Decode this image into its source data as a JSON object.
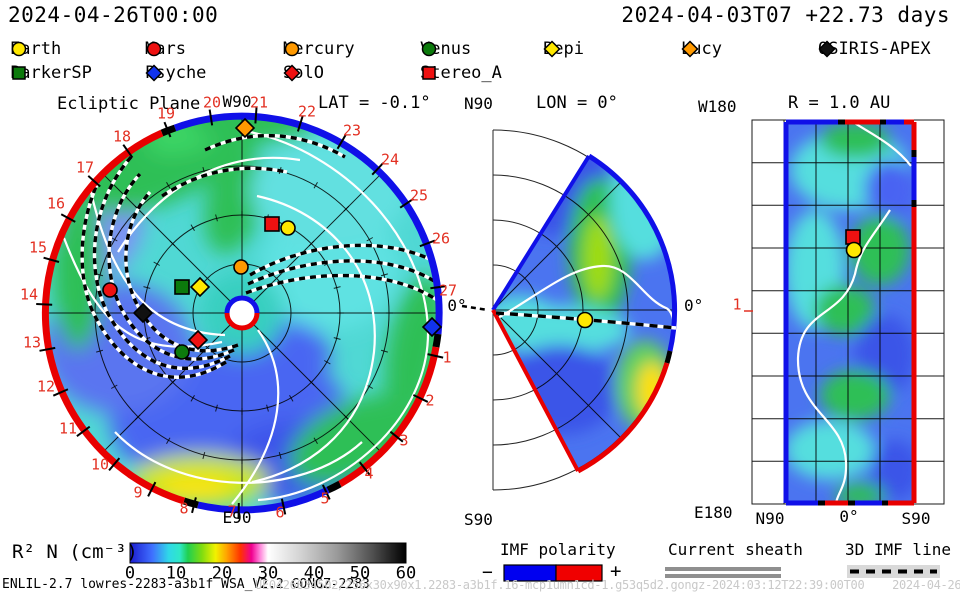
{
  "header": {
    "left_time": "2024-04-26T00:00",
    "right_time": "2024-04-03T07 +22.73 days"
  },
  "legend": {
    "row1": [
      {
        "label": "Earth",
        "shape": "circle",
        "color": "#ffe800"
      },
      {
        "label": "Mars",
        "shape": "circle",
        "color": "#ee1111"
      },
      {
        "label": "Mercury",
        "shape": "circle",
        "color": "#ff9900"
      },
      {
        "label": "Venus",
        "shape": "circle",
        "color": "#0c7a0c"
      },
      {
        "label": "Bepi",
        "shape": "diamond",
        "color": "#ffe800"
      },
      {
        "label": "Lucy",
        "shape": "diamond",
        "color": "#ff9900"
      },
      {
        "label": "OSIRIS-APEX",
        "shape": "diamond",
        "color": "#111111"
      }
    ],
    "row2": [
      {
        "label": "ParkerSP",
        "shape": "square",
        "color": "#0c7a0c"
      },
      {
        "label": "Psyche",
        "shape": "diamond",
        "color": "#1133ee"
      },
      {
        "label": "SolO",
        "shape": "diamond",
        "color": "#ee1111"
      },
      {
        "label": "Stereo_A",
        "shape": "square",
        "color": "#ee1111"
      }
    ]
  },
  "plots": {
    "ecliptic": {
      "title": "Ecliptic Plane",
      "lat_label": "LAT = -0.1°",
      "w90": "W90",
      "e90": "E90",
      "zero": "0°",
      "days": [
        "1",
        "2",
        "3",
        "4",
        "5",
        "6",
        "7",
        "8",
        "9",
        "10",
        "11",
        "12",
        "13",
        "14",
        "15",
        "16",
        "17",
        "18",
        "19",
        "20",
        "21",
        "22",
        "23",
        "24",
        "25",
        "26",
        "27"
      ]
    },
    "meridional": {
      "title": "LON = 0°",
      "n90": "N90",
      "s90": "S90",
      "zero": "0°"
    },
    "radial_map": {
      "title": "R = 1.0 AU",
      "w180": "W180",
      "e180": "E180",
      "xticks": [
        "N90",
        "0°",
        "S90"
      ],
      "r_tick": "1"
    }
  },
  "colorbar": {
    "label": "R² N (cm⁻³)",
    "ticks": [
      "0",
      "10",
      "20",
      "30",
      "40",
      "50",
      "60"
    ]
  },
  "bottom_legend": {
    "imf_title": "IMF polarity",
    "minus": "−",
    "plus": "+",
    "imf_neg_color": "#0000f0",
    "imf_pos_color": "#f00000",
    "sheath_title": "Current sheath",
    "imf3d_title": "3D IMF line"
  },
  "footer": {
    "model_info": "ENLIL-2.7 lowres-2283-a3b1f WSA_V2.2 GONGZ-2283",
    "watermark": "UE0426034502/256x30x90x1.2283-a3b1f.16-mcp1umn1cd-1.g53q5d2.gongz-2024:03:12T22:39:00T00    2024-04-26"
  },
  "chart_data": [
    {
      "type": "heatmap",
      "title": "Ecliptic Plane",
      "quantity": "R² N (cm⁻³)",
      "projection": "polar, ecliptic plane slice at LAT = -0.1°",
      "colorbar_range": [
        0,
        60
      ],
      "colorbar_ticks": [
        0,
        10,
        20,
        30,
        40,
        50,
        60
      ],
      "radial_grid_au": [
        0.5,
        1.0,
        1.5,
        2.0
      ],
      "angular_labels": {
        "right": "0°",
        "top": "W90",
        "bottom": "E90"
      },
      "day_of_month_ticks": [
        1,
        2,
        3,
        4,
        5,
        6,
        7,
        8,
        9,
        10,
        11,
        12,
        13,
        14,
        15,
        16,
        17,
        18,
        19,
        20,
        21,
        22,
        23,
        24,
        25,
        26,
        27
      ],
      "boundary_polarity_arcs": [
        {
          "from_deg": 110,
          "to_deg": -6,
          "polarity": "+",
          "color": "blue"
        },
        {
          "from_deg": -10,
          "to_deg": -60,
          "polarity": "-",
          "color": "red"
        },
        {
          "from_deg": -64,
          "to_deg": -103,
          "polarity": "+",
          "color": "blue"
        },
        {
          "from_deg": -107,
          "to_deg": 110,
          "polarity": "-",
          "color": "red"
        }
      ],
      "markers": [
        {
          "name": "Earth",
          "r_au": 1.0,
          "angle_deg": 62
        },
        {
          "name": "Stereo_A",
          "r_au": 0.96,
          "angle_deg": 71
        },
        {
          "name": "Mercury",
          "r_au": 0.47,
          "angle_deg": 91
        },
        {
          "name": "Bepi",
          "r_au": 0.5,
          "angle_deg": 148
        },
        {
          "name": "ParkerSP",
          "r_au": 0.67,
          "angle_deg": 156
        },
        {
          "name": "Lucy",
          "r_au": 1.89,
          "angle_deg": 89
        },
        {
          "name": "Mars",
          "r_au": 1.37,
          "angle_deg": 170
        },
        {
          "name": "OSIRIS-APEX",
          "r_au": 1.01,
          "angle_deg": 180
        },
        {
          "name": "SolO",
          "r_au": 0.53,
          "angle_deg": 212
        },
        {
          "name": "Venus",
          "r_au": 0.73,
          "angle_deg": 213
        },
        {
          "name": "Psyche",
          "r_au": 1.94,
          "angle_deg": 356
        }
      ]
    },
    {
      "type": "heatmap",
      "title": "LON = 0°",
      "projection": "meridional wedge, N90 to S90",
      "quantity": "R² N (cm⁻³)",
      "axis_labels": {
        "top": "N90",
        "bottom": "S90",
        "right": "0°"
      },
      "markers": [
        {
          "name": "Earth",
          "r_au": 1.0,
          "lat_deg": -3
        }
      ]
    },
    {
      "type": "heatmap",
      "title": "R = 1.0 AU",
      "projection": "latitude-longitude map at 1 AU",
      "quantity": "R² N (cm⁻³)",
      "x_axis": [
        "N90",
        "0°",
        "S90"
      ],
      "y_axis": [
        "W180",
        "E180"
      ],
      "markers": [
        {
          "name": "Stereo_A",
          "lat_deg": 5,
          "lon_deg": -25
        },
        {
          "name": "Earth",
          "lat_deg": 6,
          "lon_deg": -31
        }
      ]
    }
  ]
}
